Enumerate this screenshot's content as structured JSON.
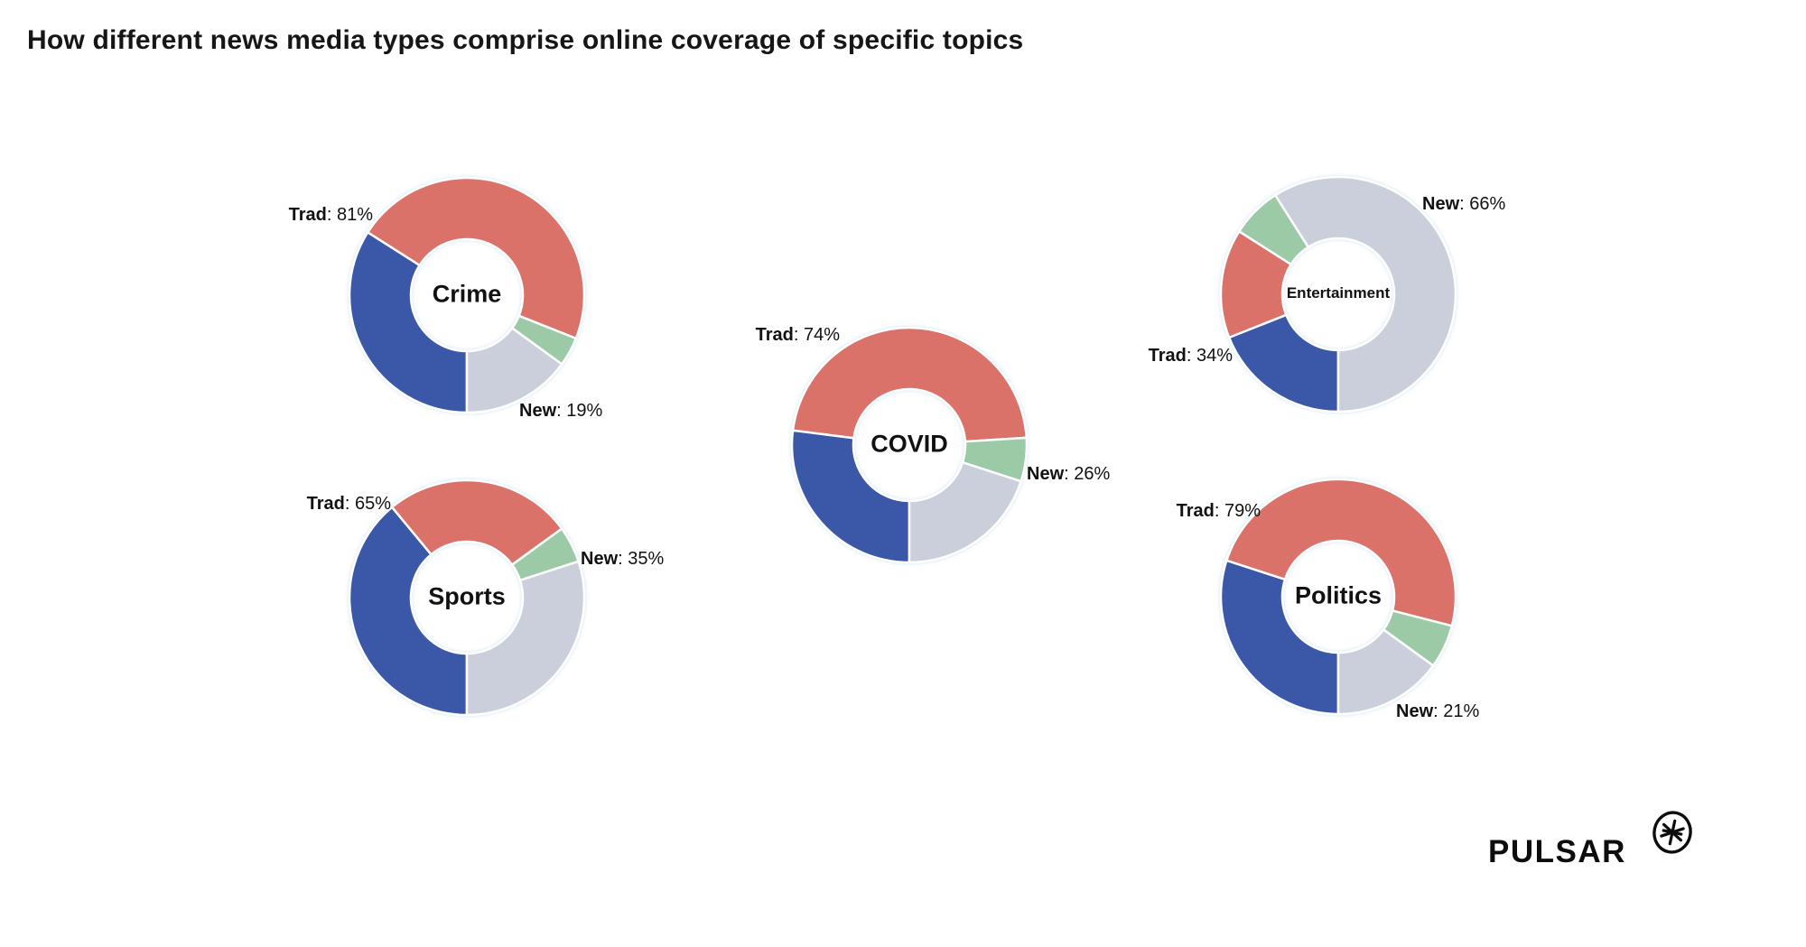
{
  "title": "How different news media types comprise online coverage of specific topics",
  "logo": {
    "text": "PULSAR",
    "icon": "circled-asterisk"
  },
  "colors": {
    "blue": "#3B57A8",
    "red": "#DB726A",
    "green": "#9CCAA7",
    "gray": "#CACFDB",
    "text": "#111111",
    "background": "#FFFFFF"
  },
  "chart_data": {
    "type": "pie",
    "subtype": "donut",
    "start_angle_deg": 180,
    "direction": "clockwise",
    "segment_order": [
      "blue",
      "red",
      "green",
      "gray"
    ],
    "segment_groups": {
      "blue": "Traditional",
      "red": "Traditional",
      "green": "New",
      "gray": "New"
    },
    "charts": [
      {
        "topic": "Crime",
        "trad_pct": 81,
        "new_pct": 19,
        "segments": {
          "blue": 34,
          "red": 47,
          "green": 4,
          "gray": 15
        },
        "labels": {
          "trad": {
            "bold": "Trad",
            "rest": ": 81%"
          },
          "new": {
            "bold": "New",
            "rest": ": 19%"
          }
        }
      },
      {
        "topic": "Sports",
        "trad_pct": 65,
        "new_pct": 35,
        "segments": {
          "blue": 39,
          "red": 26,
          "green": 5,
          "gray": 30
        },
        "labels": {
          "trad": {
            "bold": "Trad",
            "rest": ": 65%"
          },
          "new": {
            "bold": "New",
            "rest": ": 35%"
          }
        }
      },
      {
        "topic": "COVID",
        "trad_pct": 74,
        "new_pct": 26,
        "segments": {
          "blue": 27,
          "red": 47,
          "green": 6,
          "gray": 20
        },
        "labels": {
          "trad": {
            "bold": "Trad",
            "rest": ": 74%"
          },
          "new": {
            "bold": "New",
            "rest": ": 26%"
          }
        }
      },
      {
        "topic": "Entertainment",
        "trad_pct": 34,
        "new_pct": 66,
        "segments": {
          "blue": 19,
          "red": 15,
          "green": 7,
          "gray": 59
        },
        "labels": {
          "trad": {
            "bold": "Trad",
            "rest": ": 34%"
          },
          "new": {
            "bold": "New",
            "rest": ": 66%"
          }
        }
      },
      {
        "topic": "Politics",
        "trad_pct": 79,
        "new_pct": 21,
        "segments": {
          "blue": 30,
          "red": 49,
          "green": 6,
          "gray": 15
        },
        "labels": {
          "trad": {
            "bold": "Trad",
            "rest": ": 79%"
          },
          "new": {
            "bold": "New",
            "rest": ": 21%"
          }
        }
      }
    ]
  }
}
